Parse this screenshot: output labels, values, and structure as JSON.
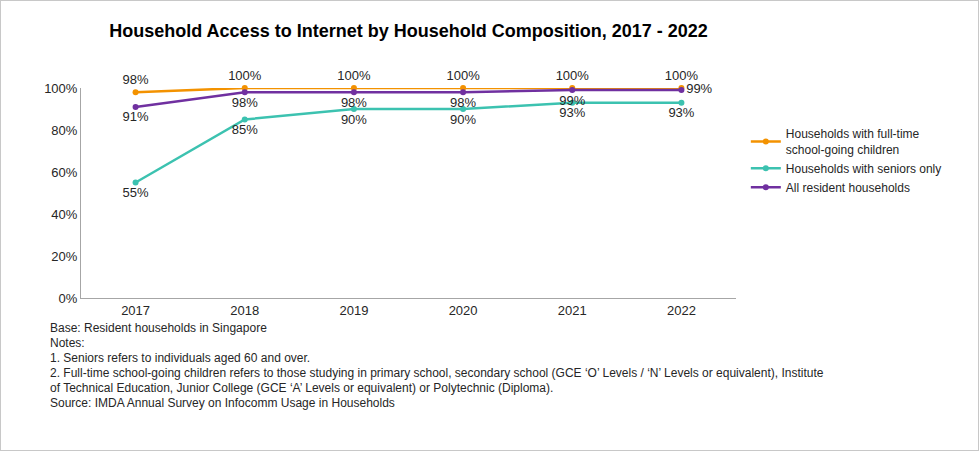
{
  "chart_data": {
    "type": "line",
    "title": "Household Access to Internet by Household Composition, 2017 - 2022",
    "categories": [
      "2017",
      "2018",
      "2019",
      "2020",
      "2021",
      "2022"
    ],
    "series": [
      {
        "name": "Households with full-time school-going children",
        "color": "#f39200",
        "values": [
          98,
          100,
          100,
          100,
          100,
          100
        ],
        "value_labels": [
          "98%",
          "100%",
          "100%",
          "100%",
          "100%",
          "100%"
        ]
      },
      {
        "name": "Households with seniors only",
        "color": "#3cc2b0",
        "values": [
          55,
          85,
          90,
          90,
          93,
          93
        ],
        "value_labels": [
          "55%",
          "85%",
          "90%",
          "90%",
          "93%",
          "93%"
        ]
      },
      {
        "name": "All resident households",
        "color": "#7030a0",
        "values": [
          91,
          98,
          98,
          98,
          99,
          99
        ],
        "value_labels": [
          "91%",
          "98%",
          "98%",
          "98%",
          "99%",
          "99%"
        ]
      }
    ],
    "ylim": [
      0,
      100
    ],
    "yticks": [
      {
        "value": 0,
        "label": "0%"
      },
      {
        "value": 20,
        "label": "20%"
      },
      {
        "value": 40,
        "label": "40%"
      },
      {
        "value": 60,
        "label": "60%"
      },
      {
        "value": 80,
        "label": "80%"
      },
      {
        "value": 100,
        "label": "100%"
      }
    ],
    "grid": false,
    "legend": "right",
    "data_labels": true,
    "marker": "circle",
    "annotations": [
      "Base: Resident households in Singapore",
      "Notes:",
      "1. Seniors refers to individuals aged 60 and over.",
      "2. Full-time school-going children refers to those studying in primary school, secondary school (GCE ‘O’ Levels / ‘N’ Levels or equivalent), Institute of Technical Education, Junior College (GCE ‘A’ Levels or equivalent) or Polytechnic (Diploma).",
      "Source: IMDA Annual Survey on Infocomm Usage in Households"
    ]
  }
}
